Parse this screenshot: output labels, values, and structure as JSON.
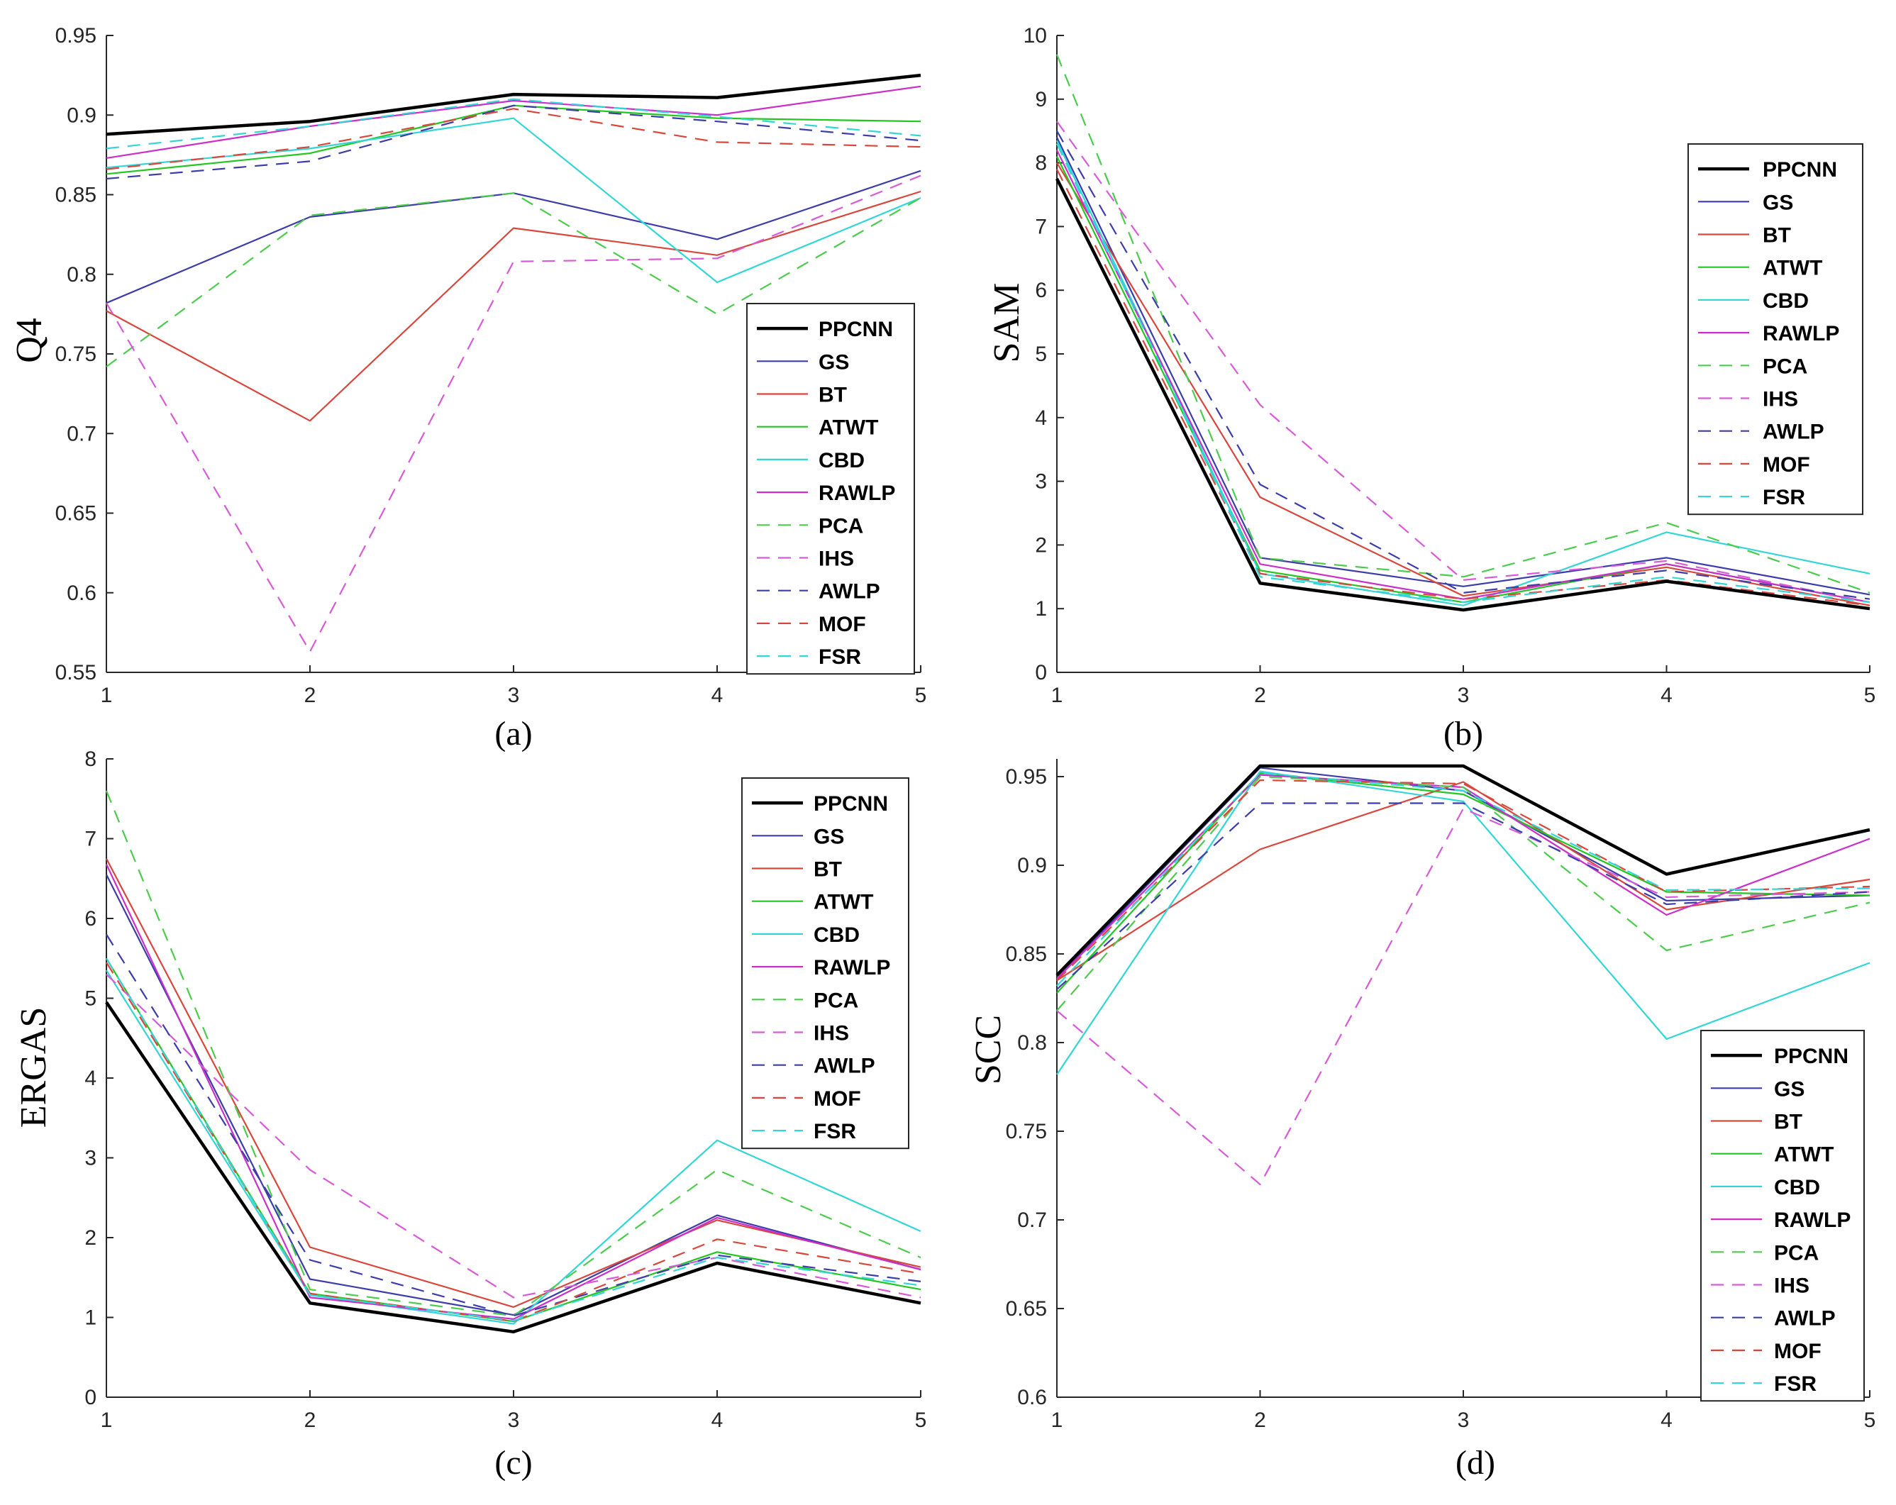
{
  "chart_data": [
    {
      "type": "line",
      "panel_label": "(a)",
      "ylabel": "Q4",
      "xlabel": "",
      "x": [
        1,
        2,
        3,
        4,
        5
      ],
      "xticks": [
        "1",
        "2",
        "3",
        "4",
        "5"
      ],
      "ylim": [
        0.55,
        0.95
      ],
      "yticks": [
        "0.55",
        "0.6",
        "0.65",
        "0.7",
        "0.75",
        "0.8",
        "0.85",
        "0.9",
        "0.95"
      ],
      "legend_position": "bottom-right",
      "series": [
        {
          "name": "PPCNN",
          "values": [
            0.888,
            0.896,
            0.913,
            0.911,
            0.925
          ]
        },
        {
          "name": "GS",
          "values": [
            0.782,
            0.836,
            0.851,
            0.822,
            0.865
          ]
        },
        {
          "name": "BT",
          "values": [
            0.777,
            0.708,
            0.829,
            0.812,
            0.852
          ]
        },
        {
          "name": "ATWT",
          "values": [
            0.863,
            0.876,
            0.906,
            0.898,
            0.896
          ]
        },
        {
          "name": "CBD",
          "values": [
            0.867,
            0.879,
            0.898,
            0.795,
            0.848
          ]
        },
        {
          "name": "RAWLP",
          "values": [
            0.873,
            0.893,
            0.909,
            0.9,
            0.918
          ]
        },
        {
          "name": "PCA",
          "values": [
            0.742,
            0.837,
            0.851,
            0.775,
            0.848
          ]
        },
        {
          "name": "IHS",
          "values": [
            0.782,
            0.563,
            0.808,
            0.81,
            0.862
          ]
        },
        {
          "name": "AWLP",
          "values": [
            0.86,
            0.871,
            0.906,
            0.896,
            0.884
          ]
        },
        {
          "name": "MOF",
          "values": [
            0.866,
            0.88,
            0.904,
            0.883,
            0.88
          ]
        },
        {
          "name": "FSR",
          "values": [
            0.879,
            0.893,
            0.91,
            0.899,
            0.887
          ]
        }
      ]
    },
    {
      "type": "line",
      "panel_label": "(b)",
      "ylabel": "SAM",
      "xlabel": "",
      "x": [
        1,
        2,
        3,
        4,
        5
      ],
      "xticks": [
        "1",
        "2",
        "3",
        "4",
        "5"
      ],
      "ylim": [
        0,
        10
      ],
      "yticks": [
        "0",
        "1",
        "2",
        "3",
        "4",
        "5",
        "6",
        "7",
        "8",
        "9",
        "10"
      ],
      "legend_position": "top-right",
      "series": [
        {
          "name": "PPCNN",
          "values": [
            7.75,
            1.4,
            0.98,
            1.43,
            1.0
          ]
        },
        {
          "name": "GS",
          "values": [
            8.4,
            1.8,
            1.35,
            1.8,
            1.22
          ]
        },
        {
          "name": "BT",
          "values": [
            8.0,
            2.75,
            1.2,
            1.65,
            1.05
          ]
        },
        {
          "name": "ATWT",
          "values": [
            8.1,
            1.6,
            1.1,
            1.7,
            1.1
          ]
        },
        {
          "name": "CBD",
          "values": [
            8.35,
            1.55,
            1.05,
            2.2,
            1.55
          ]
        },
        {
          "name": "RAWLP",
          "values": [
            8.2,
            1.7,
            1.15,
            1.7,
            1.1
          ]
        },
        {
          "name": "PCA",
          "values": [
            9.7,
            1.8,
            1.5,
            2.35,
            1.25
          ]
        },
        {
          "name": "IHS",
          "values": [
            8.65,
            4.2,
            1.45,
            1.75,
            1.1
          ]
        },
        {
          "name": "AWLP",
          "values": [
            8.5,
            2.95,
            1.25,
            1.6,
            1.15
          ]
        },
        {
          "name": "MOF",
          "values": [
            7.9,
            1.55,
            1.15,
            1.45,
            1.05
          ]
        },
        {
          "name": "FSR",
          "values": [
            8.3,
            1.5,
            1.1,
            1.5,
            1.1
          ]
        }
      ]
    },
    {
      "type": "line",
      "panel_label": "(c)",
      "ylabel": "ERGAS",
      "xlabel": "",
      "x": [
        1,
        2,
        3,
        4,
        5
      ],
      "xticks": [
        "1",
        "2",
        "3",
        "4",
        "5"
      ],
      "ylim": [
        0,
        8
      ],
      "yticks": [
        "0",
        "1",
        "2",
        "3",
        "4",
        "5",
        "6",
        "7",
        "8"
      ],
      "legend_position": "top-right",
      "series": [
        {
          "name": "PPCNN",
          "values": [
            4.95,
            1.18,
            0.82,
            1.68,
            1.18
          ]
        },
        {
          "name": "GS",
          "values": [
            6.55,
            1.48,
            1.03,
            2.28,
            1.6
          ]
        },
        {
          "name": "BT",
          "values": [
            6.75,
            1.88,
            1.13,
            2.22,
            1.63
          ]
        },
        {
          "name": "ATWT",
          "values": [
            5.5,
            1.3,
            0.95,
            1.82,
            1.35
          ]
        },
        {
          "name": "CBD",
          "values": [
            5.35,
            1.28,
            0.92,
            3.22,
            2.08
          ]
        },
        {
          "name": "RAWLP",
          "values": [
            6.68,
            1.25,
            0.98,
            2.25,
            1.6
          ]
        },
        {
          "name": "PCA",
          "values": [
            7.6,
            1.35,
            1.02,
            2.85,
            1.75
          ]
        },
        {
          "name": "IHS",
          "values": [
            5.3,
            2.85,
            1.25,
            1.75,
            1.25
          ]
        },
        {
          "name": "AWLP",
          "values": [
            5.8,
            1.72,
            1.02,
            1.78,
            1.45
          ]
        },
        {
          "name": "MOF",
          "values": [
            5.45,
            1.3,
            0.95,
            1.98,
            1.55
          ]
        },
        {
          "name": "FSR",
          "values": [
            5.5,
            1.28,
            0.96,
            1.75,
            1.4
          ]
        }
      ]
    },
    {
      "type": "line",
      "panel_label": "(d)",
      "ylabel": "SCC",
      "xlabel": "",
      "x": [
        1,
        2,
        3,
        4,
        5
      ],
      "xticks": [
        "1",
        "2",
        "3",
        "4",
        "5"
      ],
      "ylim": [
        0.6,
        0.96
      ],
      "yticks": [
        "0.6",
        "0.65",
        "0.7",
        "0.75",
        "0.8",
        "0.85",
        "0.9",
        "0.95"
      ],
      "legend_position": "bottom-right",
      "series": [
        {
          "name": "PPCNN",
          "values": [
            0.838,
            0.956,
            0.956,
            0.895,
            0.92
          ]
        },
        {
          "name": "GS",
          "values": [
            0.836,
            0.955,
            0.942,
            0.88,
            0.883
          ]
        },
        {
          "name": "BT",
          "values": [
            0.835,
            0.909,
            0.947,
            0.875,
            0.892
          ]
        },
        {
          "name": "ATWT",
          "values": [
            0.828,
            0.952,
            0.94,
            0.885,
            0.883
          ]
        },
        {
          "name": "CBD",
          "values": [
            0.782,
            0.953,
            0.936,
            0.802,
            0.845
          ]
        },
        {
          "name": "RAWLP",
          "values": [
            0.836,
            0.951,
            0.944,
            0.872,
            0.915
          ]
        },
        {
          "name": "PCA",
          "values": [
            0.818,
            0.95,
            0.944,
            0.852,
            0.879
          ]
        },
        {
          "name": "IHS",
          "values": [
            0.818,
            0.72,
            0.932,
            0.882,
            0.885
          ]
        },
        {
          "name": "AWLP",
          "values": [
            0.83,
            0.935,
            0.935,
            0.878,
            0.885
          ]
        },
        {
          "name": "MOF",
          "values": [
            0.835,
            0.948,
            0.946,
            0.885,
            0.888
          ]
        },
        {
          "name": "FSR",
          "values": [
            0.832,
            0.952,
            0.942,
            0.886,
            0.887
          ]
        }
      ]
    }
  ],
  "series_styles": [
    {
      "name": "PPCNN",
      "color": "#000000",
      "dash": "solid",
      "bold": true
    },
    {
      "name": "GS",
      "color": "#3c3caa",
      "dash": "solid",
      "bold": false
    },
    {
      "name": "BT",
      "color": "#d9473c",
      "dash": "solid",
      "bold": false
    },
    {
      "name": "ATWT",
      "color": "#22c722",
      "dash": "solid",
      "bold": false
    },
    {
      "name": "CBD",
      "color": "#33d6d6",
      "dash": "solid",
      "bold": false
    },
    {
      "name": "RAWLP",
      "color": "#cc2ecc",
      "dash": "solid",
      "bold": false
    },
    {
      "name": "PCA",
      "color": "#4ccc4c",
      "dash": "dashed",
      "bold": false
    },
    {
      "name": "IHS",
      "color": "#d95ad9",
      "dash": "dashed",
      "bold": false
    },
    {
      "name": "AWLP",
      "color": "#3c3caa",
      "dash": "dashed",
      "bold": false
    },
    {
      "name": "MOF",
      "color": "#d9473c",
      "dash": "dashed",
      "bold": false
    },
    {
      "name": "FSR",
      "color": "#33d6d6",
      "dash": "dashed",
      "bold": false
    }
  ]
}
